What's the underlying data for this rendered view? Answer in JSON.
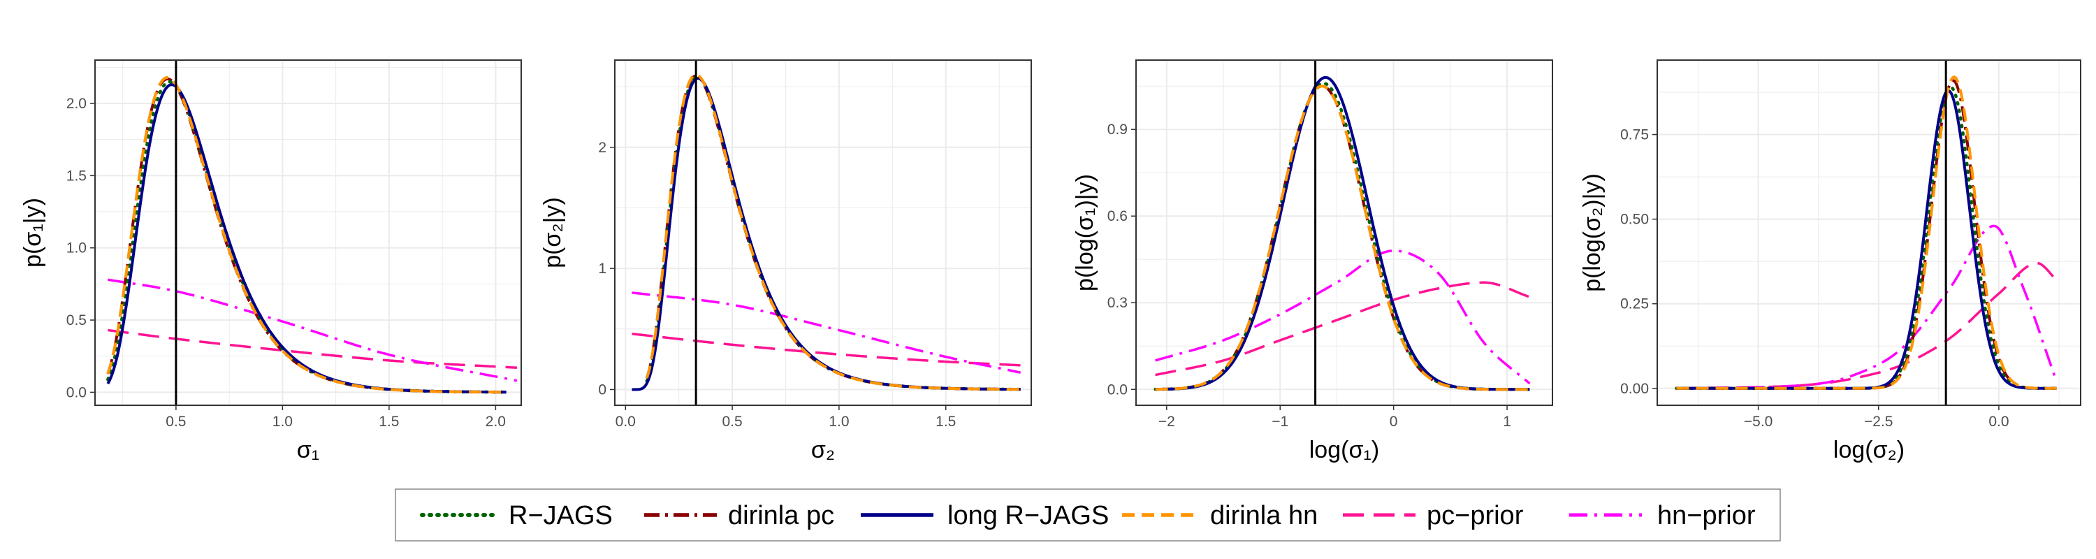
{
  "colors": {
    "rjags": "#006400",
    "dirinla_pc": "#8b0000",
    "long_rjags": "#00008b",
    "dirinla_hn": "#ff9500",
    "pc_prior": "#ff1493",
    "hn_prior": "#ff00ff",
    "truth_line": "#000000",
    "grid": "#ebebeb"
  },
  "legend": {
    "placement": "bottom",
    "items": [
      {
        "key": "rjags",
        "label": "R−JAGS",
        "style": "dotted"
      },
      {
        "key": "dirinla_pc",
        "label": "dirinla pc",
        "style": "dashdot"
      },
      {
        "key": "long_rjags",
        "label": "long R−JAGS",
        "style": "solid"
      },
      {
        "key": "dirinla_hn",
        "label": "dirinla hn",
        "style": "dashed"
      },
      {
        "key": "pc_prior",
        "label": "pc−prior",
        "style": "longdash"
      },
      {
        "key": "hn_prior",
        "label": "hn−prior",
        "style": "dotdash"
      }
    ]
  },
  "chart_data": [
    {
      "type": "line",
      "xlabel": "σ₁",
      "ylabel": "p(σ₁|y)",
      "xlim": [
        0.12,
        2.12
      ],
      "ylim": [
        -0.09,
        2.3
      ],
      "xticks": [
        0.5,
        1.0,
        1.5,
        2.0
      ],
      "xtick_labels": [
        "0.5",
        "1.0",
        "1.5",
        "2.0"
      ],
      "yticks": [
        0.0,
        0.5,
        1.0,
        1.5,
        2.0
      ],
      "ytick_labels": [
        "0.0",
        "0.5",
        "1.0",
        "1.5",
        "2.0"
      ],
      "truth_x": 0.5,
      "grid": true,
      "posterior": {
        "dist": "lognormal",
        "mode": 0.47,
        "peak": 2.15,
        "sdlog": 0.38,
        "xrange": [
          0.18,
          2.05
        ]
      },
      "series": [
        {
          "key": "rjags",
          "x": [
            0.18,
            0.3,
            0.4,
            0.47,
            0.55,
            0.7,
            0.85,
            1.0,
            1.25,
            1.5,
            2.05
          ],
          "y": [
            0.04,
            1.13,
            1.96,
            2.15,
            2.03,
            1.43,
            0.86,
            0.49,
            0.18,
            0.06,
            0.0
          ]
        },
        {
          "key": "dirinla_pc",
          "x": [
            0.18,
            0.3,
            0.4,
            0.46,
            0.55,
            0.7,
            0.85,
            1.0,
            1.25,
            1.5,
            2.05
          ],
          "y": [
            0.03,
            1.1,
            1.97,
            2.17,
            2.01,
            1.4,
            0.85,
            0.48,
            0.17,
            0.06,
            0.0
          ]
        },
        {
          "key": "long_rjags",
          "x": [
            0.18,
            0.3,
            0.4,
            0.48,
            0.55,
            0.7,
            0.85,
            1.0,
            1.25,
            1.5,
            2.05
          ],
          "y": [
            0.05,
            1.16,
            1.94,
            2.13,
            2.04,
            1.45,
            0.88,
            0.5,
            0.18,
            0.06,
            0.0
          ]
        },
        {
          "key": "dirinla_hn",
          "x": [
            0.18,
            0.3,
            0.4,
            0.46,
            0.55,
            0.7,
            0.85,
            1.0,
            1.25,
            1.5,
            2.05
          ],
          "y": [
            0.03,
            1.08,
            1.97,
            2.18,
            2.0,
            1.39,
            0.84,
            0.47,
            0.17,
            0.06,
            0.0
          ]
        },
        {
          "key": "pc_prior",
          "x": [
            0.18,
            0.5,
            1.0,
            1.5,
            2.1
          ],
          "y": [
            0.43,
            0.37,
            0.29,
            0.22,
            0.17
          ]
        },
        {
          "key": "hn_prior",
          "x": [
            0.18,
            0.5,
            1.0,
            1.5,
            2.1
          ],
          "y": [
            0.78,
            0.7,
            0.49,
            0.26,
            0.08
          ]
        }
      ]
    },
    {
      "type": "line",
      "xlabel": "σ₂",
      "ylabel": "p(σ₂|y)",
      "xlim": [
        -0.05,
        1.9
      ],
      "ylim": [
        -0.13,
        2.72
      ],
      "xticks": [
        0.0,
        0.5,
        1.0,
        1.5
      ],
      "xtick_labels": [
        "0.0",
        "0.5",
        "1.0",
        "1.5"
      ],
      "yticks": [
        0,
        1,
        2
      ],
      "ytick_labels": [
        "0",
        "1",
        "2"
      ],
      "truth_x": 0.33,
      "grid": true,
      "posterior": {
        "dist": "lognormal",
        "mode": 0.335,
        "peak": 2.58,
        "sdlog": 0.45,
        "xrange": [
          0.03,
          1.85
        ]
      },
      "series": [
        {
          "key": "rjags",
          "x": [
            0.1,
            0.2,
            0.28,
            0.335,
            0.42,
            0.55,
            0.7,
            0.9,
            1.2,
            1.5,
            1.85
          ],
          "y": [
            0.08,
            1.02,
            2.15,
            2.58,
            2.21,
            1.32,
            0.67,
            0.26,
            0.06,
            0.01,
            0.0
          ]
        },
        {
          "key": "dirinla_pc",
          "x": [
            0.1,
            0.2,
            0.28,
            0.33,
            0.42,
            0.55,
            0.7,
            0.9,
            1.2,
            1.5,
            1.85
          ],
          "y": [
            0.05,
            0.98,
            2.16,
            2.59,
            2.18,
            1.3,
            0.66,
            0.25,
            0.06,
            0.01,
            0.0
          ]
        },
        {
          "key": "long_rjags",
          "x": [
            0.03,
            0.1,
            0.2,
            0.28,
            0.34,
            0.42,
            0.55,
            0.7,
            0.9,
            1.2,
            1.85
          ],
          "y": [
            0.04,
            0.12,
            1.05,
            2.13,
            2.57,
            2.23,
            1.34,
            0.68,
            0.26,
            0.06,
            0.0
          ]
        },
        {
          "key": "dirinla_hn",
          "x": [
            0.1,
            0.2,
            0.28,
            0.33,
            0.42,
            0.55,
            0.7,
            0.9,
            1.2,
            1.5,
            1.85
          ],
          "y": [
            0.03,
            0.95,
            2.17,
            2.6,
            2.17,
            1.29,
            0.65,
            0.25,
            0.06,
            0.01,
            0.0
          ]
        },
        {
          "key": "pc_prior",
          "x": [
            0.03,
            0.5,
            1.0,
            1.5,
            1.85
          ],
          "y": [
            0.46,
            0.37,
            0.29,
            0.23,
            0.2
          ]
        },
        {
          "key": "hn_prior",
          "x": [
            0.03,
            0.5,
            1.0,
            1.5,
            1.85
          ],
          "y": [
            0.8,
            0.7,
            0.49,
            0.27,
            0.14
          ]
        }
      ]
    },
    {
      "type": "line",
      "xlabel": "log(σ₁)",
      "ylabel": "p(log(σ₁)|y)",
      "xlim": [
        -2.27,
        1.4
      ],
      "ylim": [
        -0.055,
        1.14
      ],
      "xticks": [
        -2,
        -1,
        0,
        1
      ],
      "xtick_labels": [
        "−2",
        "−1",
        "0",
        "1"
      ],
      "yticks": [
        0.0,
        0.3,
        0.6,
        0.9
      ],
      "ytick_labels": [
        "0.0",
        "0.3",
        "0.6",
        "0.9"
      ],
      "truth_x": -0.69,
      "grid": true,
      "posterior": {
        "dist": "normal",
        "mean": -0.62,
        "peak": 1.06,
        "sd": 0.37,
        "xrange": [
          -2.1,
          1.2
        ]
      },
      "series": [
        {
          "key": "rjags",
          "x": [
            -2.1,
            -1.6,
            -1.2,
            -0.9,
            -0.62,
            -0.35,
            0.0,
            0.4,
            0.8,
            1.2
          ],
          "y": [
            0.0,
            0.03,
            0.29,
            0.8,
            1.06,
            0.82,
            0.26,
            0.03,
            0.0,
            0.0
          ]
        },
        {
          "key": "dirinla_pc",
          "x": [
            -2.1,
            -1.6,
            -1.2,
            -0.9,
            -0.63,
            -0.35,
            0.0,
            0.4,
            0.8,
            1.2
          ],
          "y": [
            0.0,
            0.03,
            0.3,
            0.81,
            1.05,
            0.81,
            0.25,
            0.03,
            0.0,
            0.0
          ]
        },
        {
          "key": "long_rjags",
          "x": [
            -2.1,
            -1.6,
            -1.2,
            -0.9,
            -0.6,
            -0.35,
            0.0,
            0.4,
            0.8,
            1.2
          ],
          "y": [
            0.0,
            0.02,
            0.27,
            0.78,
            1.08,
            0.84,
            0.27,
            0.03,
            0.0,
            0.0
          ]
        },
        {
          "key": "dirinla_hn",
          "x": [
            -2.1,
            -1.6,
            -1.2,
            -0.9,
            -0.63,
            -0.35,
            0.0,
            0.4,
            0.8,
            1.2
          ],
          "y": [
            0.0,
            0.03,
            0.3,
            0.81,
            1.05,
            0.81,
            0.25,
            0.03,
            0.0,
            0.0
          ]
        },
        {
          "key": "pc_prior",
          "x": [
            -2.1,
            -1.5,
            -1.0,
            -0.5,
            0.0,
            0.4,
            0.8,
            1.2
          ],
          "y": [
            0.05,
            0.1,
            0.17,
            0.24,
            0.31,
            0.35,
            0.37,
            0.32
          ]
        },
        {
          "key": "hn_prior",
          "x": [
            -2.1,
            -1.5,
            -1.0,
            -0.5,
            0.0,
            0.4,
            0.8,
            1.2
          ],
          "y": [
            0.1,
            0.17,
            0.26,
            0.37,
            0.48,
            0.4,
            0.16,
            0.02
          ]
        }
      ]
    },
    {
      "type": "line",
      "xlabel": "log(σ₂)",
      "ylabel": "p(log(σ₂)|y)",
      "xlim": [
        -7.1,
        1.7
      ],
      "ylim": [
        -0.05,
        0.97
      ],
      "xticks": [
        -5.0,
        -2.5,
        0.0
      ],
      "xtick_labels": [
        "−5.0",
        "−2.5",
        "0.0"
      ],
      "yticks": [
        0.0,
        0.25,
        0.5,
        0.75
      ],
      "ytick_labels": [
        "0.00",
        "0.25",
        "0.50",
        "0.75"
      ],
      "truth_x": -1.1,
      "grid": true,
      "posterior": {
        "dist": "normal",
        "mean": -1.0,
        "peak": 0.9,
        "sd": 0.44,
        "xrange": [
          -6.7,
          1.2
        ]
      },
      "series": [
        {
          "key": "rjags",
          "x": [
            -6.7,
            -3.0,
            -2.0,
            -1.5,
            -1.0,
            -0.5,
            0.0,
            0.5,
            1.2
          ],
          "y": [
            0.0,
            0.0,
            0.06,
            0.47,
            0.89,
            0.48,
            0.07,
            0.0,
            0.0
          ]
        },
        {
          "key": "dirinla_pc",
          "x": [
            -6.7,
            -3.0,
            -2.0,
            -1.5,
            -0.95,
            -0.5,
            0.0,
            0.5,
            1.2
          ],
          "y": [
            0.0,
            0.0,
            0.05,
            0.44,
            0.91,
            0.5,
            0.08,
            0.0,
            0.0
          ]
        },
        {
          "key": "long_rjags",
          "x": [
            -6.7,
            -3.0,
            -2.0,
            -1.5,
            -1.05,
            -0.5,
            0.0,
            0.5,
            1.2
          ],
          "y": [
            0.0,
            0.0,
            0.07,
            0.5,
            0.88,
            0.45,
            0.06,
            0.0,
            0.0
          ]
        },
        {
          "key": "dirinla_hn",
          "x": [
            -6.7,
            -3.0,
            -2.0,
            -1.5,
            -0.93,
            -0.5,
            0.0,
            0.5,
            1.2
          ],
          "y": [
            0.0,
            0.0,
            0.05,
            0.43,
            0.92,
            0.51,
            0.08,
            0.0,
            0.0
          ]
        },
        {
          "key": "pc_prior",
          "x": [
            -6.7,
            -4.0,
            -3.0,
            -2.0,
            -1.0,
            0.0,
            0.8,
            1.2
          ],
          "y": [
            0.0,
            0.01,
            0.03,
            0.07,
            0.15,
            0.28,
            0.37,
            0.32
          ]
        },
        {
          "key": "hn_prior",
          "x": [
            -6.7,
            -4.0,
            -3.0,
            -2.0,
            -1.0,
            -0.1,
            0.5,
            1.2
          ],
          "y": [
            0.0,
            0.01,
            0.04,
            0.12,
            0.3,
            0.48,
            0.3,
            0.02
          ]
        }
      ]
    }
  ]
}
